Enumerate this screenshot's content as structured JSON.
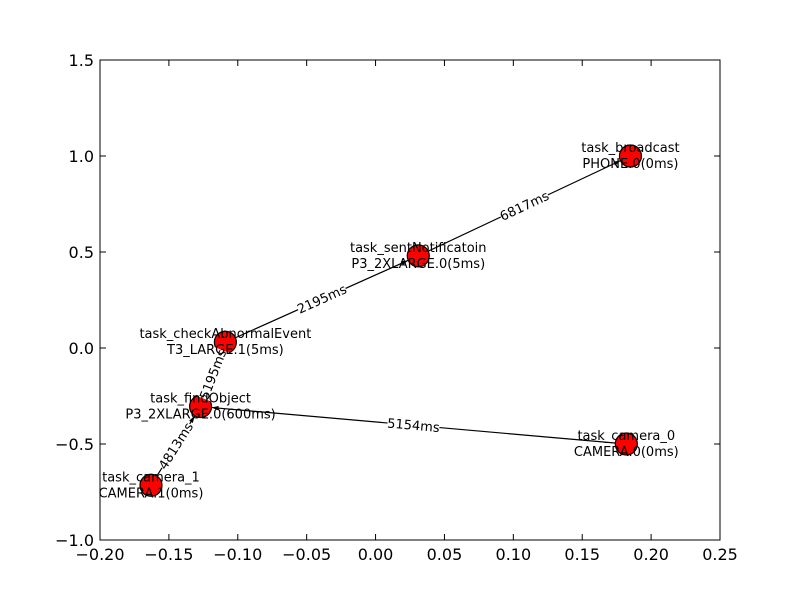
{
  "chart_data": {
    "type": "graph",
    "xlim": [
      -0.2,
      0.25
    ],
    "ylim": [
      -1.0,
      1.5
    ],
    "x_ticks": [
      {
        "value": -0.2,
        "label": "−0.20"
      },
      {
        "value": -0.15,
        "label": "−0.15"
      },
      {
        "value": -0.1,
        "label": "−0.10"
      },
      {
        "value": -0.05,
        "label": "−0.05"
      },
      {
        "value": 0.0,
        "label": "0.00"
      },
      {
        "value": 0.05,
        "label": "0.05"
      },
      {
        "value": 0.1,
        "label": "0.10"
      },
      {
        "value": 0.15,
        "label": "0.15"
      },
      {
        "value": 0.2,
        "label": "0.20"
      },
      {
        "value": 0.25,
        "label": "0.25"
      }
    ],
    "y_ticks": [
      {
        "value": -1.0,
        "label": "−1.0"
      },
      {
        "value": -0.5,
        "label": "−0.5"
      },
      {
        "value": 0.0,
        "label": "0.0"
      },
      {
        "value": 0.5,
        "label": "0.5"
      },
      {
        "value": 1.0,
        "label": "1.0"
      },
      {
        "value": 1.5,
        "label": "1.5"
      }
    ],
    "node_color": "#ff0000",
    "nodes": [
      {
        "id": "task_broadcast",
        "x": 0.185,
        "y": 1.0,
        "line1": "task_broadcast",
        "line2": "PHONE.0(0ms)"
      },
      {
        "id": "task_sentNotificatoin",
        "x": 0.031,
        "y": 0.48,
        "line1": "task_sentNotificatoin",
        "line2": "P3_2XLARGE.0(5ms)"
      },
      {
        "id": "task_checkAbnormalEvent",
        "x": -0.109,
        "y": 0.03,
        "line1": "task_checkAbnormalEvent",
        "line2": "T3_LARGE.1(5ms)"
      },
      {
        "id": "task_findObject",
        "x": -0.127,
        "y": -0.305,
        "line1": "task_findObject",
        "line2": "P3_2XLARGE.0(600ms)"
      },
      {
        "id": "task_camera_0",
        "x": 0.182,
        "y": -0.5,
        "line1": "task_camera_0",
        "line2": "CAMERA.0(0ms)"
      },
      {
        "id": "task_camera_1",
        "x": -0.163,
        "y": -0.715,
        "line1": "task_camera_1",
        "line2": "CAMERA.1(0ms)"
      }
    ],
    "edges": [
      {
        "source": "task_sentNotificatoin",
        "target": "task_broadcast",
        "label": "6817ms"
      },
      {
        "source": "task_checkAbnormalEvent",
        "target": "task_sentNotificatoin",
        "label": "2195ms"
      },
      {
        "source": "task_findObject",
        "target": "task_checkAbnormalEvent",
        "label": "5195ms"
      },
      {
        "source": "task_camera_0",
        "target": "task_findObject",
        "label": "5154ms"
      },
      {
        "source": "task_camera_1",
        "target": "task_findObject",
        "label": "4813ms"
      }
    ]
  }
}
